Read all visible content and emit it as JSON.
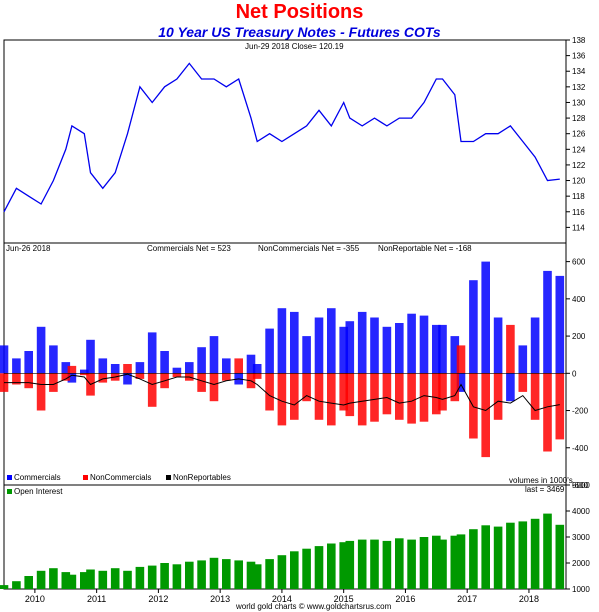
{
  "title": "Net Positions",
  "subtitle": "10 Year US Treasury Notes - Futures COTs",
  "footer": "world gold charts © www.goldchartsrus.com",
  "colors": {
    "price": "#0000ee",
    "commercials": "#0000ff",
    "noncommercials": "#ff0000",
    "nonreportables": "#000000",
    "open_interest": "#009900"
  },
  "chart_data": [
    {
      "type": "line",
      "name": "price",
      "header": "Jun-29  2018    Close= 120.19",
      "ylim": [
        112,
        138
      ],
      "yticks": [
        114,
        116,
        118,
        120,
        122,
        124,
        126,
        128,
        130,
        132,
        134,
        136,
        138
      ],
      "x": [
        2009.5,
        2009.7,
        2009.9,
        2010.1,
        2010.3,
        2010.5,
        2010.6,
        2010.8,
        2010.9,
        2011.1,
        2011.3,
        2011.5,
        2011.7,
        2011.9,
        2012.1,
        2012.3,
        2012.5,
        2012.7,
        2012.9,
        2013.1,
        2013.3,
        2013.5,
        2013.6,
        2013.8,
        2014.0,
        2014.2,
        2014.4,
        2014.6,
        2014.8,
        2015.0,
        2015.1,
        2015.3,
        2015.5,
        2015.7,
        2015.9,
        2016.1,
        2016.3,
        2016.5,
        2016.6,
        2016.8,
        2016.9,
        2017.1,
        2017.3,
        2017.5,
        2017.7,
        2017.9,
        2018.1,
        2018.3,
        2018.5
      ],
      "values": [
        116,
        119,
        118,
        117,
        120,
        124,
        127,
        126,
        121,
        119,
        121,
        126,
        132,
        130,
        132,
        133,
        135,
        133,
        133,
        132,
        133,
        128,
        125,
        126,
        125,
        126,
        127,
        129,
        127,
        130,
        128,
        127,
        128,
        127,
        128,
        128,
        130,
        133,
        133,
        131,
        125,
        125,
        126,
        126,
        127,
        125,
        123,
        120,
        120.19
      ]
    },
    {
      "type": "bar",
      "name": "net positions",
      "header_date": "Jun-26  2018",
      "header_commercials": "Commercials Net = 523",
      "header_noncommercials": "NonCommercials Net = -355",
      "header_nonreportables": "NonReportable Net = -168",
      "ylim": [
        -600,
        700
      ],
      "yticks": [
        -600,
        -400,
        -200,
        0,
        200,
        400,
        600
      ],
      "legend": [
        "Commercials",
        "NonCommercials",
        "NonReportables"
      ],
      "units_note": "volumes in 1000's",
      "x": [
        2009.5,
        2009.7,
        2009.9,
        2010.1,
        2010.3,
        2010.5,
        2010.6,
        2010.8,
        2010.9,
        2011.1,
        2011.3,
        2011.5,
        2011.7,
        2011.9,
        2012.1,
        2012.3,
        2012.5,
        2012.7,
        2012.9,
        2013.1,
        2013.3,
        2013.5,
        2013.6,
        2013.8,
        2014.0,
        2014.2,
        2014.4,
        2014.6,
        2014.8,
        2015.0,
        2015.1,
        2015.3,
        2015.5,
        2015.7,
        2015.9,
        2016.1,
        2016.3,
        2016.5,
        2016.6,
        2016.8,
        2016.9,
        2017.1,
        2017.3,
        2017.5,
        2017.7,
        2017.9,
        2018.1,
        2018.3,
        2018.5
      ],
      "series": [
        {
          "name": "Commercials",
          "values": [
            150,
            80,
            120,
            250,
            150,
            60,
            -50,
            20,
            180,
            80,
            50,
            -60,
            60,
            220,
            120,
            30,
            60,
            140,
            200,
            80,
            -60,
            100,
            50,
            240,
            350,
            330,
            200,
            300,
            350,
            250,
            280,
            330,
            300,
            250,
            270,
            320,
            310,
            260,
            260,
            200,
            -100,
            500,
            600,
            300,
            -150,
            150,
            300,
            550,
            523
          ]
        },
        {
          "name": "NonCommercials",
          "values": [
            -100,
            -60,
            -80,
            -200,
            -100,
            -40,
            40,
            -10,
            -120,
            -50,
            -40,
            50,
            -30,
            -180,
            -80,
            -20,
            -40,
            -100,
            -150,
            -40,
            80,
            -80,
            -30,
            -200,
            -280,
            -250,
            -150,
            -250,
            -280,
            -200,
            -230,
            -280,
            -260,
            -220,
            -250,
            -270,
            -260,
            -220,
            -200,
            -150,
            150,
            -350,
            -450,
            -250,
            260,
            -100,
            -250,
            -420,
            -355
          ]
        },
        {
          "name": "NonReportables",
          "values": [
            -50,
            -50,
            -50,
            -60,
            -60,
            -30,
            -10,
            -20,
            -60,
            -30,
            -20,
            -5,
            -30,
            -60,
            -40,
            -20,
            -20,
            -40,
            -60,
            -40,
            -30,
            -40,
            -60,
            -120,
            -150,
            -170,
            -120,
            -150,
            -160,
            -170,
            -160,
            -150,
            -140,
            -130,
            -160,
            -150,
            -120,
            -130,
            -140,
            -120,
            -60,
            -180,
            -200,
            -150,
            -160,
            -120,
            -200,
            -180,
            -168
          ]
        }
      ]
    },
    {
      "type": "bar",
      "name": "open interest",
      "legend": [
        "Open Interest"
      ],
      "header_last": "last = 3469",
      "ylim": [
        1000,
        5000
      ],
      "yticks": [
        1000,
        2000,
        3000,
        4000,
        5000
      ],
      "x": [
        2009.5,
        2009.7,
        2009.9,
        2010.1,
        2010.3,
        2010.5,
        2010.6,
        2010.8,
        2010.9,
        2011.1,
        2011.3,
        2011.5,
        2011.7,
        2011.9,
        2012.1,
        2012.3,
        2012.5,
        2012.7,
        2012.9,
        2013.1,
        2013.3,
        2013.5,
        2013.6,
        2013.8,
        2014.0,
        2014.2,
        2014.4,
        2014.6,
        2014.8,
        2015.0,
        2015.1,
        2015.3,
        2015.5,
        2015.7,
        2015.9,
        2016.1,
        2016.3,
        2016.5,
        2016.6,
        2016.8,
        2016.9,
        2017.1,
        2017.3,
        2017.5,
        2017.7,
        2017.9,
        2018.1,
        2018.3,
        2018.5
      ],
      "values": [
        1150,
        1300,
        1500,
        1700,
        1800,
        1650,
        1550,
        1650,
        1750,
        1700,
        1800,
        1700,
        1850,
        1900,
        2000,
        1950,
        2050,
        2100,
        2200,
        2150,
        2100,
        2050,
        1950,
        2150,
        2300,
        2450,
        2550,
        2650,
        2750,
        2800,
        2850,
        2900,
        2900,
        2850,
        2950,
        2900,
        3000,
        3050,
        2900,
        3050,
        3100,
        3300,
        3450,
        3400,
        3550,
        3600,
        3700,
        3900,
        3469
      ]
    }
  ],
  "x_axis": {
    "xlim": [
      2009.5,
      2018.6
    ],
    "ticks": [
      "2010",
      "2011",
      "2012",
      "2013",
      "2014",
      "2015",
      "2016",
      "2017",
      "2018"
    ]
  }
}
